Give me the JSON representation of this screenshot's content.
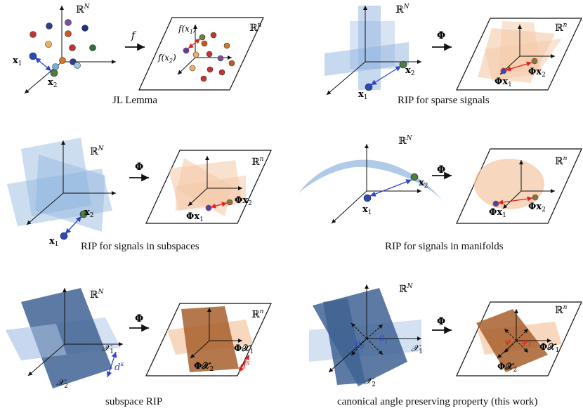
{
  "panels": [
    {
      "id": "jl",
      "caption": "JL Lemma",
      "space_high": "ℝ",
      "space_high_exp": "N",
      "space_low": "ℝ",
      "space_low_exp": "n",
      "map": "f",
      "pt1": "x",
      "pt1_sub": "1",
      "pt2": "x",
      "pt2_sub": "2",
      "img1": "f(x",
      "img1_sub": "1",
      "img2": "f(x",
      "img2_sub": "2"
    },
    {
      "id": "sparse",
      "caption": "RIP for sparse signals",
      "space_high": "ℝ",
      "space_high_exp": "N",
      "space_low": "ℝ",
      "space_low_exp": "n",
      "map": "Φ",
      "pt1": "x",
      "pt1_sub": "1",
      "pt2": "x",
      "pt2_sub": "2",
      "img1": "Φx",
      "img1_sub": "1",
      "img2": "Φx",
      "img2_sub": "2"
    },
    {
      "id": "subspaces",
      "caption": "RIP for signals in subspaces",
      "space_high": "ℝ",
      "space_high_exp": "N",
      "space_low": "ℝ",
      "space_low_exp": "n",
      "map": "Φ",
      "pt1": "x",
      "pt1_sub": "1",
      "pt2": "x",
      "pt2_sub": "2",
      "img1": "Φx",
      "img1_sub": "1",
      "img2": "Φx",
      "img2_sub": "2"
    },
    {
      "id": "manifolds",
      "caption": "RIP for signals in manifolds",
      "space_high": "ℝ",
      "space_high_exp": "N",
      "space_low": "ℝ",
      "space_low_exp": "n",
      "map": "Φ",
      "pt1": "x",
      "pt1_sub": "1",
      "pt2": "x",
      "pt2_sub": "2",
      "img1": "Φx",
      "img1_sub": "1",
      "img2": "Φx",
      "img2_sub": "2"
    },
    {
      "id": "subspace_rip",
      "caption": "subspace RIP",
      "space_high": "ℝ",
      "space_high_exp": "N",
      "space_low": "ℝ",
      "space_low_exp": "n",
      "map": "Φ",
      "set1": "𝒳",
      "set1_sub": "1",
      "set2": "𝒳",
      "set2_sub": "2",
      "dist": "d",
      "dist_exp": "κ",
      "img1": "Φ𝒳",
      "img1_sub": "1",
      "img2": "Φ𝒳",
      "img2_sub": "2"
    },
    {
      "id": "canonical",
      "caption": "canonical angle preserving property (this work)",
      "space_high": "ℝ",
      "space_high_exp": "N",
      "space_low": "ℝ",
      "space_low_exp": "n",
      "map": "Φ",
      "set1": "𝒳",
      "set1_sub": "1",
      "set2": "𝒳",
      "set2_sub": "2",
      "angle1": "θ",
      "angle1_sub": "1",
      "angle2": "θ",
      "angle2_sub": "d",
      "img_angle1": "ψ",
      "img_angle1_sub": "1",
      "img_angle2": "ψ",
      "img_angle2_sub": "d",
      "img1": "Φ𝒳",
      "img1_sub": "1",
      "img2": "Φ𝒳",
      "img2_sub": "2"
    }
  ],
  "colors": {
    "blue_plane": "#8fb3de",
    "blue_dark": "#3f6393",
    "orange_plane": "#f4c9a8",
    "orange_dark": "#a8602e",
    "arrow_blue": "#3344cc",
    "arrow_red": "#e02020",
    "dots": [
      "#2a3f8f",
      "#cc5522",
      "#c33333",
      "#2f6f3f",
      "#f0a040",
      "#6aa0c8",
      "#7d4f9f",
      "#d07828"
    ]
  }
}
